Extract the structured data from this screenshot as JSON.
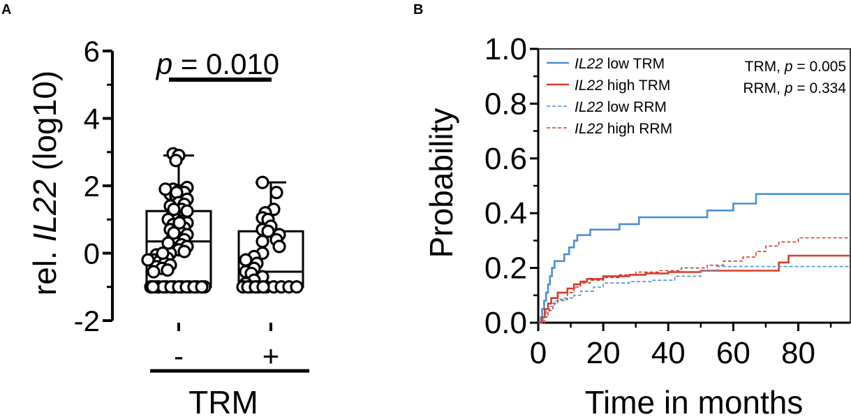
{
  "panel_labels": {
    "a": "A",
    "b": "B"
  },
  "chart_data": [
    {
      "type": "box",
      "ylabel_prefix": "rel. ",
      "ylabel_gene": "IL22",
      "ylabel_suffix": " (log10)",
      "ylim": [
        -2,
        6
      ],
      "yticks": [
        "-2",
        "0",
        "2",
        "4",
        "6"
      ],
      "categories": [
        "-",
        "+"
      ],
      "group_label": "TRM",
      "significance": {
        "p_symbol": "p",
        "p_text": " = 0.010"
      },
      "series": [
        {
          "name": "-",
          "min": -1.0,
          "q1": -1.0,
          "median": 0.35,
          "q3": 1.25,
          "max": 2.9
        },
        {
          "name": "+",
          "min": -1.0,
          "q1": -1.0,
          "median": -0.55,
          "q3": 0.65,
          "max": 2.1
        }
      ],
      "points": {
        "-": [
          2.95,
          2.9,
          2.75,
          1.95,
          1.9,
          1.85,
          1.8,
          1.75,
          1.9,
          1.7,
          1.8,
          1.6,
          1.5,
          1.45,
          1.3,
          1.4,
          1.2,
          1.1,
          1.25,
          1.0,
          0.95,
          0.9,
          1.0,
          0.85,
          0.8,
          0.75,
          0.7,
          0.65,
          0.6,
          0.55,
          0.5,
          0.45,
          0.4,
          0.35,
          0.3,
          0.25,
          0.2,
          0.15,
          0.1,
          0.05,
          0.0,
          -0.05,
          -0.1,
          -0.15,
          -0.2,
          -0.25,
          -0.3,
          -0.35,
          -0.4,
          -0.45,
          -0.5,
          -0.55,
          0.6,
          0.3,
          0.0,
          -0.2,
          1.3,
          0.9,
          -1.0,
          -1.0,
          -1.0,
          -1.0,
          -1.0,
          -1.0,
          -1.0,
          -1.0,
          -1.0,
          -1.0,
          -1.0,
          -1.0,
          -1.0,
          -1.0,
          -1.0,
          -1.0
        ],
        "+": [
          2.1,
          1.8,
          1.3,
          1.2,
          1.05,
          1.0,
          0.8,
          0.7,
          0.65,
          0.55,
          0.4,
          0.35,
          0.2,
          0.0,
          -0.1,
          -0.2,
          -0.3,
          -0.45,
          -0.55,
          -0.6,
          -0.7,
          -0.8,
          -0.9,
          -1.0,
          -1.0,
          -1.0,
          -1.0,
          -1.0,
          -1.0,
          -1.0,
          -1.0,
          -1.0,
          -1.0,
          -1.0
        ]
      }
    },
    {
      "type": "line",
      "xlabel": "Time in months",
      "ylabel": "Probability",
      "xlim": [
        0,
        96
      ],
      "ylim": [
        0,
        1.0
      ],
      "xticks": [
        "0",
        "20",
        "40",
        "60",
        "80"
      ],
      "yticks": [
        "0.0",
        "0.2",
        "0.4",
        "0.6",
        "0.8",
        "1.0"
      ],
      "stats": [
        {
          "name": "TRM",
          "p_symbol": "p",
          "p_text": " = 0.005"
        },
        {
          "name": "RRM",
          "p_symbol": "p",
          "p_text": " = 0.334"
        }
      ],
      "series": [
        {
          "gene": "IL22",
          "label": " low TRM",
          "color": "#4a8fd4",
          "dashed": false,
          "steps": [
            [
              0,
              0
            ],
            [
              0.8,
              0.02
            ],
            [
              1.2,
              0.05
            ],
            [
              1.8,
              0.08
            ],
            [
              2.4,
              0.11
            ],
            [
              3,
              0.14
            ],
            [
              3.6,
              0.17
            ],
            [
              4.2,
              0.2
            ],
            [
              5,
              0.225
            ],
            [
              8,
              0.25
            ],
            [
              9.5,
              0.275
            ],
            [
              11,
              0.3
            ],
            [
              12,
              0.32
            ],
            [
              16,
              0.34
            ],
            [
              25,
              0.36
            ],
            [
              31,
              0.385
            ],
            [
              45,
              0.385
            ],
            [
              52,
              0.41
            ],
            [
              60,
              0.435
            ],
            [
              67,
              0.47
            ],
            [
              96,
              0.47
            ]
          ]
        },
        {
          "gene": "IL22",
          "label": " high TRM",
          "color": "#d63b2a",
          "dashed": false,
          "steps": [
            [
              0,
              0
            ],
            [
              1.2,
              0.02
            ],
            [
              2,
              0.05
            ],
            [
              3,
              0.07
            ],
            [
              4,
              0.09
            ],
            [
              6,
              0.11
            ],
            [
              9,
              0.125
            ],
            [
              11,
              0.14
            ],
            [
              13,
              0.15
            ],
            [
              15,
              0.16
            ],
            [
              20,
              0.17
            ],
            [
              28,
              0.175
            ],
            [
              33,
              0.18
            ],
            [
              40,
              0.185
            ],
            [
              50,
              0.19
            ],
            [
              74,
              0.22
            ],
            [
              77,
              0.245
            ],
            [
              96,
              0.245
            ]
          ]
        },
        {
          "gene": "IL22",
          "label": " low RRM",
          "color": "#4a8fd4",
          "dashed": true,
          "steps": [
            [
              0,
              0
            ],
            [
              1.5,
              0.02
            ],
            [
              2.5,
              0.04
            ],
            [
              3.5,
              0.06
            ],
            [
              5,
              0.08
            ],
            [
              8,
              0.09
            ],
            [
              11,
              0.1
            ],
            [
              13,
              0.115
            ],
            [
              17,
              0.13
            ],
            [
              20,
              0.145
            ],
            [
              28,
              0.15
            ],
            [
              35,
              0.155
            ],
            [
              42,
              0.17
            ],
            [
              50,
              0.19
            ],
            [
              55,
              0.205
            ],
            [
              96,
              0.205
            ]
          ]
        },
        {
          "gene": "IL22",
          "label": " high RRM",
          "color": "#d63b2a",
          "dashed": true,
          "steps": [
            [
              0,
              0
            ],
            [
              2,
              0.02
            ],
            [
              3,
              0.045
            ],
            [
              4.5,
              0.07
            ],
            [
              6,
              0.085
            ],
            [
              9,
              0.11
            ],
            [
              11,
              0.13
            ],
            [
              13,
              0.145
            ],
            [
              16,
              0.155
            ],
            [
              20,
              0.165
            ],
            [
              25,
              0.175
            ],
            [
              30,
              0.185
            ],
            [
              37,
              0.19
            ],
            [
              44,
              0.2
            ],
            [
              52,
              0.21
            ],
            [
              57,
              0.225
            ],
            [
              63,
              0.24
            ],
            [
              67,
              0.26
            ],
            [
              70,
              0.28
            ],
            [
              74,
              0.295
            ],
            [
              80,
              0.31
            ],
            [
              96,
              0.31
            ]
          ]
        }
      ]
    }
  ]
}
